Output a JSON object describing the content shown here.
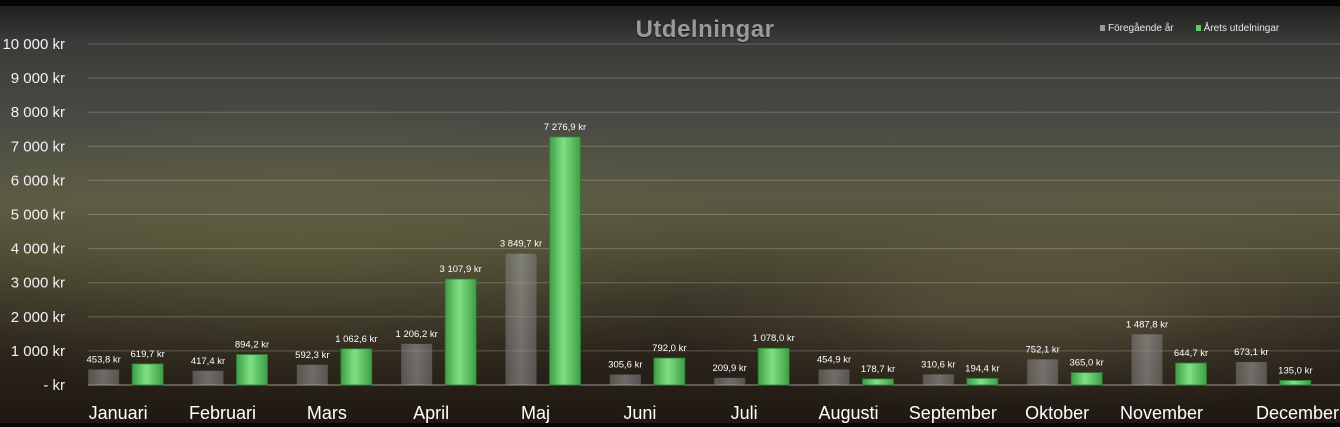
{
  "chart_data": {
    "type": "bar",
    "title": "Utdelningar",
    "categories": [
      "Januari",
      "Februari",
      "Mars",
      "April",
      "Maj",
      "Juni",
      "Juli",
      "Augusti",
      "September",
      "Oktober",
      "November",
      "December"
    ],
    "series": [
      {
        "name": "Föregående år",
        "color": "#9a9a9a",
        "values": [
          453.8,
          417.4,
          592.3,
          1206.2,
          3849.7,
          305.6,
          209.9,
          454.9,
          310.6,
          752.1,
          1487.8,
          673.1
        ],
        "labels": [
          "453,8 kr",
          "417,4 kr",
          "592,3 kr",
          "1 206,2 kr",
          "3 849,7 kr",
          "305,6 kr",
          "209,9 kr",
          "454,9 kr",
          "310,6 kr",
          "752,1 kr",
          "1 487,8 kr",
          "673,1 kr"
        ]
      },
      {
        "name": "Årets utdelningar",
        "color": "#5ec964",
        "values": [
          619.7,
          894.2,
          1062.6,
          3107.9,
          7276.9,
          792.0,
          1078.0,
          178.7,
          194.4,
          365.0,
          644.7,
          135.0
        ],
        "labels": [
          "619,7 kr",
          "894,2 kr",
          "1 062,6 kr",
          "3 107,9 kr",
          "7 276,9 kr",
          "792,0 kr",
          "1 078,0 kr",
          "178,7 kr",
          "194,4 kr",
          "365,0 kr",
          "644,7 kr",
          "135,0 kr"
        ]
      }
    ],
    "ylim": [
      0,
      10000
    ],
    "yticks": [
      0,
      1000,
      2000,
      3000,
      4000,
      5000,
      6000,
      7000,
      8000,
      9000,
      10000
    ],
    "ytick_labels": [
      "- kr",
      "1 000 kr",
      "2 000 kr",
      "3 000 kr",
      "4 000 kr",
      "5 000 kr",
      "6 000 kr",
      "7 000 kr",
      "8 000 kr",
      "9 000 kr",
      "10 000 kr"
    ],
    "grid": true,
    "legend_position": "top-right",
    "xlabel": "",
    "ylabel": ""
  }
}
